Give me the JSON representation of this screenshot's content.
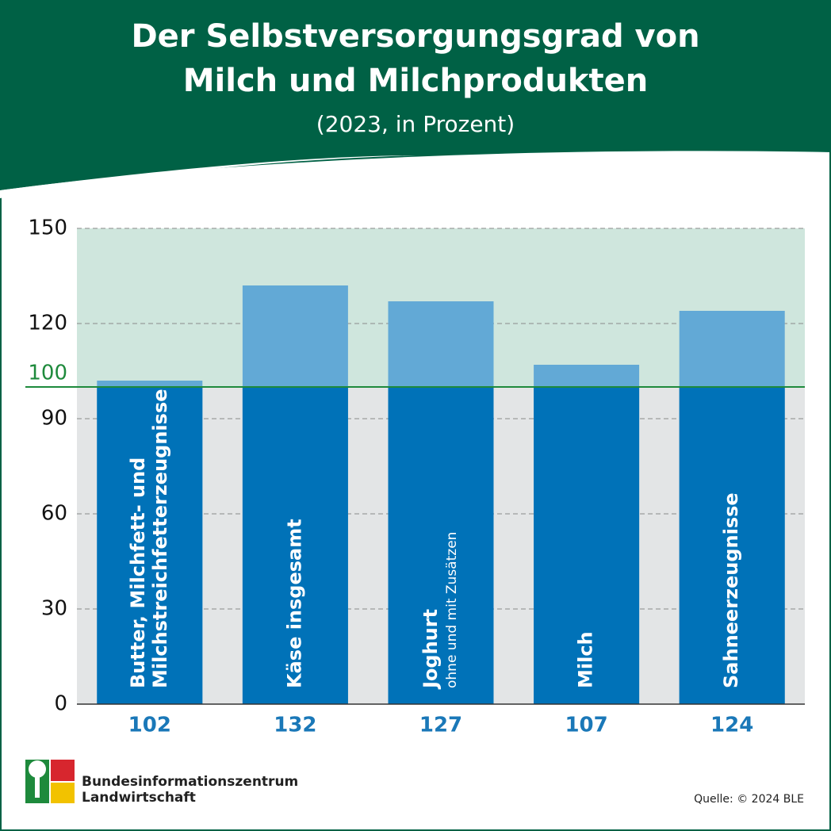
{
  "chart_data": {
    "type": "bar",
    "title": "Der Selbstversorgungsgrad von Milch und Milchprodukten",
    "subtitle": "(2023, in Prozent)",
    "categories": [
      "Butter, Milchfett- und Milchstreichfetterzeugnisse",
      "Käse insgesamt",
      "Joghurt",
      "Milch",
      "Sahneerzeugnisse"
    ],
    "category_subtitles": {
      "2": "ohne und mit Zusätzen"
    },
    "values": [
      102,
      132,
      127,
      107,
      124
    ],
    "color": "#0072b8",
    "above_reference_color": "#62a9d6",
    "reference_line": 100,
    "reference_color": "#1e8a3c",
    "ylim": [
      0,
      150
    ],
    "yticks": [
      0,
      30,
      60,
      90,
      120,
      150
    ],
    "grid": true,
    "source": "Quelle: © 2024 BLE",
    "publisher": [
      "Bundesinformationszentrum",
      "Landwirtschaft"
    ]
  }
}
